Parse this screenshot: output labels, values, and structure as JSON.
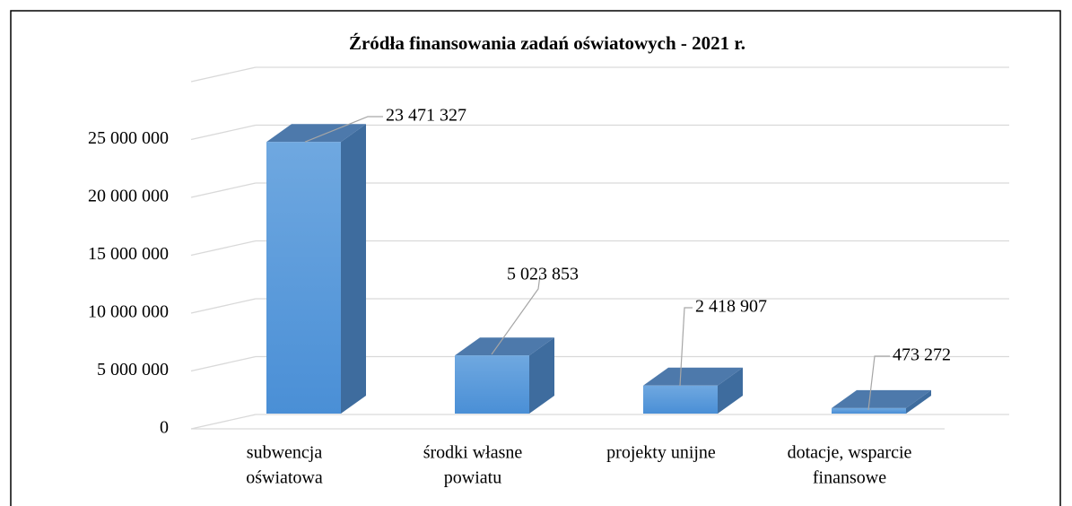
{
  "chart_data": {
    "type": "bar3d",
    "title": "Źródła finansowania zadań oświatowych - 2021 r.",
    "categories": [
      [
        "subwencja",
        "oświatowa"
      ],
      [
        "środki własne",
        "powiatu"
      ],
      [
        "projekty unijne"
      ],
      [
        "dotacje, wsparcie",
        "finansowe"
      ]
    ],
    "values": [
      23471327,
      5023853,
      2418907,
      473272
    ],
    "value_labels": [
      "23 471 327",
      "5 023 853",
      "2 418 907",
      "473 272"
    ],
    "color": "#5b9bd5",
    "ylim": [
      0,
      30000000
    ],
    "yticks": [
      0,
      {
        "value": 5000000,
        "label": "5 000 000"
      },
      {
        "value": 10000000,
        "label": "10 000 000"
      },
      {
        "value": 15000000,
        "label": "15 000 000"
      },
      {
        "value": 20000000,
        "label": "20 000 000"
      },
      {
        "value": 25000000,
        "label": "25 000 000"
      }
    ],
    "grid": true
  }
}
